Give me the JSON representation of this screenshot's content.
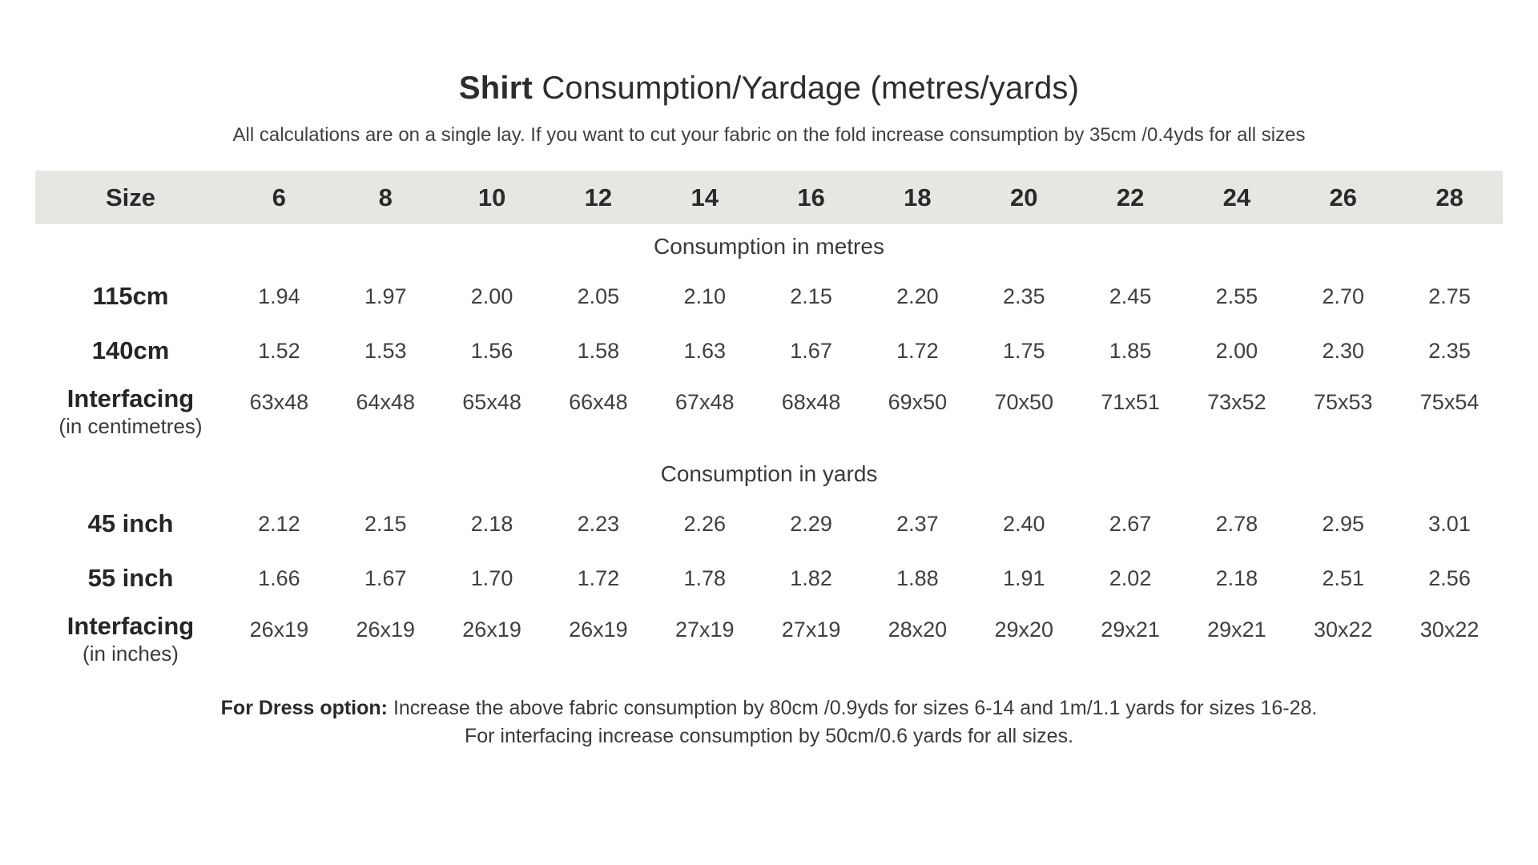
{
  "colors": {
    "header_band_bg": "#e8e6e3",
    "page_bg": "#ffffff",
    "text": "#3f3f3f",
    "bold_text": "#2a2a2a"
  },
  "header": {
    "title_bold": "Shirt",
    "title_rest": "Consumption/Yardage (metres/yards)",
    "subtitle": "All calculations are on a single lay. If you want to cut your fabric on the fold increase consumption by 35cm /0.4yds for all sizes"
  },
  "chart_data": {
    "type": "table",
    "title": "Shirt Consumption/Yardage (metres/yards)",
    "size_header_label": "Size",
    "sizes": [
      "6",
      "8",
      "10",
      "12",
      "14",
      "16",
      "18",
      "20",
      "22",
      "24",
      "26",
      "28"
    ],
    "sections": [
      {
        "heading": "Consumption in metres",
        "rows": [
          {
            "label": "115cm",
            "sublabel": "",
            "values": [
              "1.94",
              "1.97",
              "2.00",
              "2.05",
              "2.10",
              "2.15",
              "2.20",
              "2.35",
              "2.45",
              "2.55",
              "2.70",
              "2.75"
            ]
          },
          {
            "label": "140cm",
            "sublabel": "",
            "values": [
              "1.52",
              "1.53",
              "1.56",
              "1.58",
              "1.63",
              "1.67",
              "1.72",
              "1.75",
              "1.85",
              "2.00",
              "2.30",
              "2.35"
            ]
          },
          {
            "label": "Interfacing",
            "sublabel": "(in centimetres)",
            "values": [
              "63x48",
              "64x48",
              "65x48",
              "66x48",
              "67x48",
              "68x48",
              "69x50",
              "70x50",
              "71x51",
              "73x52",
              "75x53",
              "75x54"
            ]
          }
        ]
      },
      {
        "heading": "Consumption in yards",
        "rows": [
          {
            "label": "45 inch",
            "sublabel": "",
            "values": [
              "2.12",
              "2.15",
              "2.18",
              "2.23",
              "2.26",
              "2.29",
              "2.37",
              "2.40",
              "2.67",
              "2.78",
              "2.95",
              "3.01"
            ]
          },
          {
            "label": "55 inch",
            "sublabel": "",
            "values": [
              "1.66",
              "1.67",
              "1.70",
              "1.72",
              "1.78",
              "1.82",
              "1.88",
              "1.91",
              "2.02",
              "2.18",
              "2.51",
              "2.56"
            ]
          },
          {
            "label": "Interfacing",
            "sublabel": "(in inches)",
            "values": [
              "26x19",
              "26x19",
              "26x19",
              "26x19",
              "27x19",
              "27x19",
              "28x20",
              "29x20",
              "29x21",
              "29x21",
              "30x22",
              "30x22"
            ]
          }
        ]
      }
    ]
  },
  "footer": {
    "line1_bold": "For Dress option:",
    "line1_rest": "Increase the above fabric consumption by 80cm /0.9yds for sizes 6-14 and 1m/1.1 yards for sizes 16-28.",
    "line2": "For interfacing increase consumption by 50cm/0.6 yards for all sizes."
  }
}
